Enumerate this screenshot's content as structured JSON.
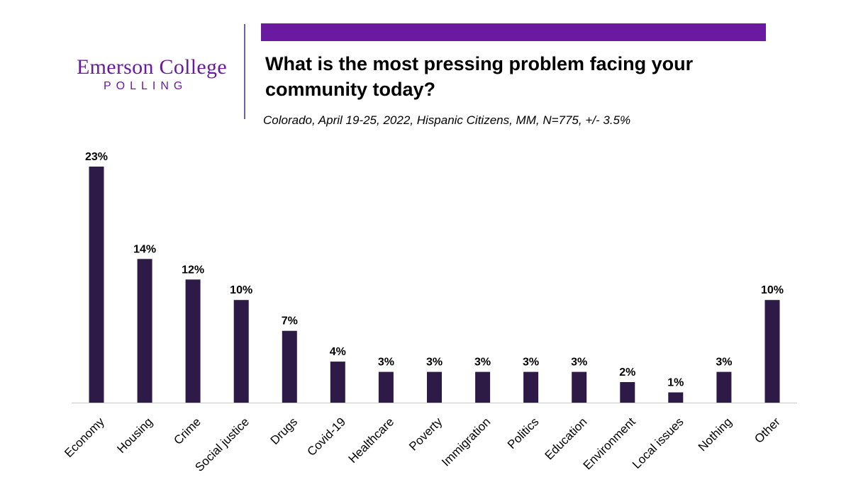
{
  "logo": {
    "name": "Emerson College",
    "sub": "POLLING"
  },
  "title": "What is the most pressing problem facing your community today?",
  "subtitle": "Colorado, April 19-25, 2022, Hispanic Citizens, MM, N=775, +/- 3.5%",
  "colors": {
    "brand": "#6a1aa0",
    "bar": "#2e1a47",
    "axis": "#c8c8c8"
  },
  "chart_data": {
    "type": "bar",
    "categories": [
      "Economy",
      "Housing",
      "Crime",
      "Social justice",
      "Drugs",
      "Covid-19",
      "Healthcare",
      "Poverty",
      "Immigration",
      "Politics",
      "Education",
      "Environment",
      "Local issues",
      "Nothing",
      "Other"
    ],
    "values": [
      23,
      14,
      12,
      10,
      7,
      4,
      3,
      3,
      3,
      3,
      3,
      2,
      1,
      3,
      10
    ],
    "labels": [
      "23%",
      "14%",
      "12%",
      "10%",
      "7%",
      "4%",
      "3%",
      "3%",
      "3%",
      "3%",
      "3%",
      "2%",
      "1%",
      "3%",
      "10%"
    ],
    "title": "What is the most pressing problem facing your community today?",
    "xlabel": "",
    "ylabel": "",
    "ylim": [
      0,
      23
    ],
    "grid": false,
    "legend": "none"
  }
}
